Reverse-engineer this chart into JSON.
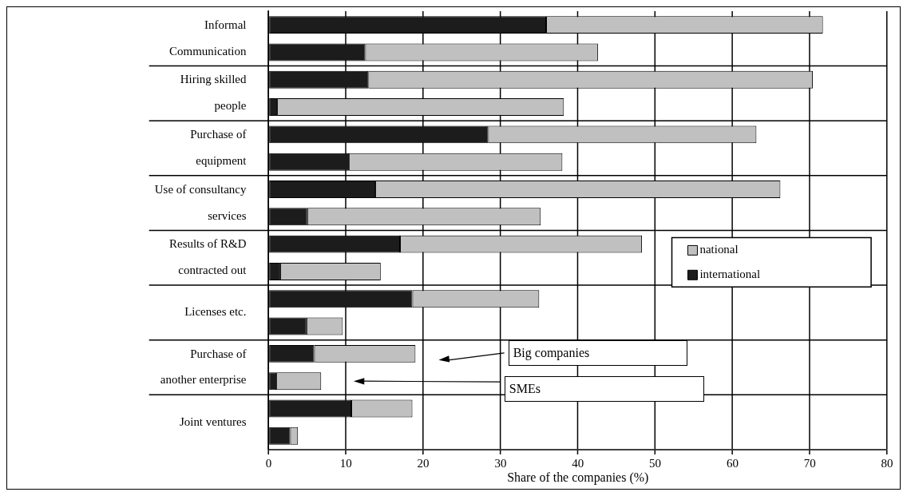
{
  "chart_data": {
    "type": "bar",
    "orientation": "horizontal",
    "stacked": true,
    "xlabel": "Share of the companies (%)",
    "categories": [
      "Informal Communication",
      null,
      "Hiring skilled people",
      null,
      "Purchase of equipment",
      null,
      "Use of consultancy services",
      null,
      "Results of R&D contracted out",
      null,
      "Licenses etc.",
      null,
      "Purchase of another enterprise",
      null,
      "Joint ventures",
      null
    ],
    "series": [
      {
        "name": "international",
        "color": "#1c1c1c",
        "values": [
          35.9,
          12.5,
          12.9,
          1.1,
          28.4,
          10.4,
          13.8,
          5.0,
          17.0,
          1.5,
          18.6,
          4.9,
          5.9,
          1.0,
          10.7,
          2.8
        ]
      },
      {
        "name": "national",
        "color": "#c0c0c0",
        "values": [
          35.8,
          30.1,
          57.5,
          37.1,
          34.7,
          27.6,
          52.4,
          30.2,
          31.3,
          13.0,
          16.4,
          4.7,
          13.1,
          5.8,
          7.9,
          1.0
        ]
      }
    ],
    "xlim": [
      0,
      80
    ],
    "xticks": [
      0,
      10,
      20,
      30,
      40,
      50,
      60,
      70,
      80
    ],
    "grid": true,
    "legend": "right",
    "annotations": [
      "Big companies",
      "SMEs"
    ]
  }
}
